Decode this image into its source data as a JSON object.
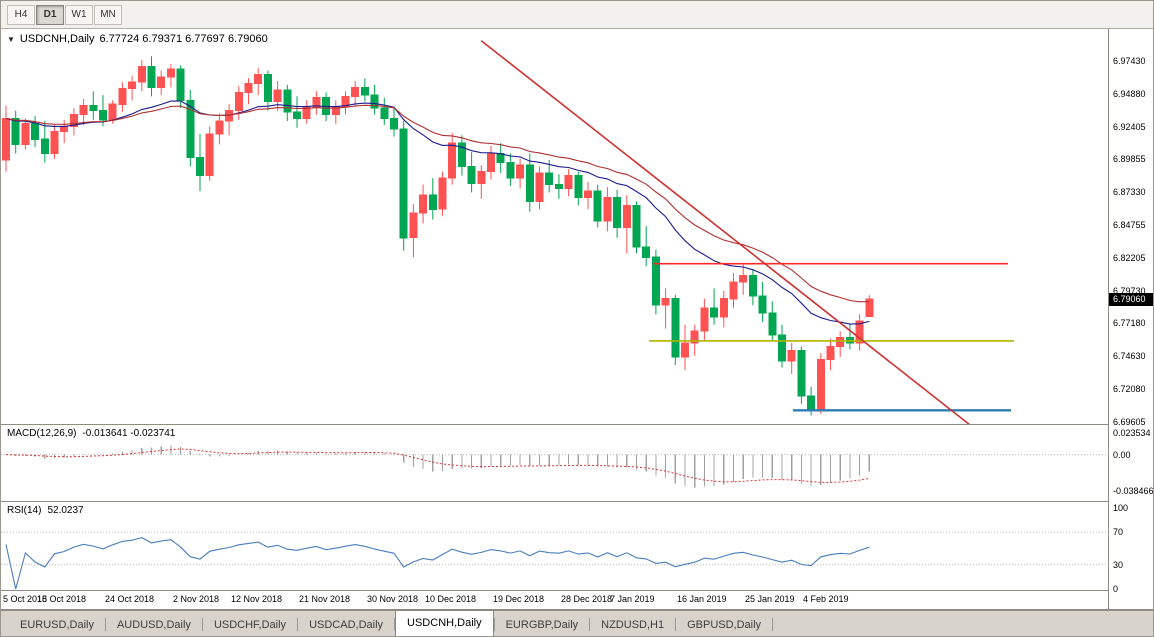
{
  "toolbar": {
    "timeframes": [
      {
        "label": "H4",
        "active": false
      },
      {
        "label": "D1",
        "active": true
      },
      {
        "label": "W1",
        "active": false
      },
      {
        "label": "MN",
        "active": false
      }
    ]
  },
  "chart": {
    "marker": "▼",
    "symbol_title": "USDCNH,Daily",
    "ohlc": "6.77724 6.79371 6.77697 6.79060"
  },
  "macd_panel": {
    "title": "MACD(12,26,9)",
    "values": "-0.013641 -0.023741",
    "axis_labels": [
      "0.023534",
      "0.00",
      "-0.038466"
    ]
  },
  "rsi_panel": {
    "title": "RSI(14)",
    "value": "52.0237",
    "axis_labels": [
      "100",
      "70",
      "30",
      "0"
    ]
  },
  "price_axis": {
    "labels": [
      "6.97430",
      "6.94880",
      "6.92405",
      "6.89855",
      "6.87330",
      "6.84755",
      "6.82205",
      "6.79730",
      "6.77180",
      "6.74630",
      "6.72080",
      "6.69605"
    ],
    "current_price": "6.79060"
  },
  "date_axis": {
    "ticks": [
      {
        "label": "5 Oct 2018",
        "bar": 0
      },
      {
        "label": "15 Oct 2018",
        "bar": 6
      },
      {
        "label": "24 Oct 2018",
        "bar": 13
      },
      {
        "label": "2 Nov 2018",
        "bar": 20
      },
      {
        "label": "12 Nov 2018",
        "bar": 26
      },
      {
        "label": "21 Nov 2018",
        "bar": 33
      },
      {
        "label": "30 Nov 2018",
        "bar": 40
      },
      {
        "label": "10 Dec 2018",
        "bar": 46
      },
      {
        "label": "19 Dec 2018",
        "bar": 53
      },
      {
        "label": "28 Dec 2018",
        "bar": 60
      },
      {
        "label": "7 Jan 2019",
        "bar": 65
      },
      {
        "label": "16 Jan 2019",
        "bar": 72
      },
      {
        "label": "25 Jan 2019",
        "bar": 79
      },
      {
        "label": "4 Feb 2019",
        "bar": 85
      }
    ]
  },
  "bottom_tabs": {
    "items": [
      {
        "label": "EURUSD,Daily",
        "active": false
      },
      {
        "label": "AUDUSD,Daily",
        "active": false
      },
      {
        "label": "USDCHF,Daily",
        "active": false
      },
      {
        "label": "USDCAD,Daily",
        "active": false
      },
      {
        "label": "USDCNH,Daily",
        "active": true
      },
      {
        "label": "EURGBP,Daily",
        "active": false
      },
      {
        "label": "NZDUSD,H1",
        "active": false
      },
      {
        "label": "GBPUSD,Daily",
        "active": false
      }
    ]
  },
  "colors": {
    "bull": "#ff5252",
    "bear": "#00a651",
    "ma_fast": "#1b1b8f",
    "ma_slow": "#b03030",
    "trendline": "#cc3333",
    "hline_red": "#ff2a2a",
    "hline_olive": "#b0b400",
    "hline_blue": "#2e7db2",
    "macd_hist": "#a0a0a0",
    "macd_signal": "#dd3333",
    "rsi": "#4a7ebb",
    "badge_bg": "#000000",
    "badge_text": "#ffffff"
  },
  "chart_data": {
    "type": "candlestick",
    "title": "USDCNH,Daily",
    "price_range": {
      "top": 6.999,
      "bottom": 6.6944
    },
    "candles": [
      [
        6.898,
        6.94,
        6.889,
        6.93
      ],
      [
        6.93,
        6.936,
        6.903,
        6.91
      ],
      [
        6.91,
        6.93,
        6.906,
        6.926
      ],
      [
        6.926,
        6.932,
        6.908,
        6.914
      ],
      [
        6.914,
        6.928,
        6.896,
        6.903
      ],
      [
        6.903,
        6.925,
        6.899,
        6.92
      ],
      [
        6.92,
        6.929,
        6.911,
        6.924
      ],
      [
        6.924,
        6.938,
        6.917,
        6.933
      ],
      [
        6.933,
        6.945,
        6.925,
        6.94
      ],
      [
        6.94,
        6.951,
        6.929,
        6.936
      ],
      [
        6.936,
        6.948,
        6.924,
        6.929
      ],
      [
        6.929,
        6.944,
        6.926,
        6.941
      ],
      [
        6.941,
        6.958,
        6.935,
        6.953
      ],
      [
        6.953,
        6.963,
        6.944,
        6.958
      ],
      [
        6.958,
        6.975,
        6.951,
        6.97
      ],
      [
        6.97,
        6.978,
        6.947,
        6.954
      ],
      [
        6.954,
        6.967,
        6.948,
        6.962
      ],
      [
        6.962,
        6.972,
        6.954,
        6.968
      ],
      [
        6.968,
        6.971,
        6.938,
        6.944
      ],
      [
        6.944,
        6.952,
        6.893,
        6.9
      ],
      [
        6.9,
        6.918,
        6.874,
        6.886
      ],
      [
        6.886,
        6.924,
        6.882,
        6.918
      ],
      [
        6.918,
        6.934,
        6.91,
        6.928
      ],
      [
        6.928,
        6.941,
        6.917,
        6.936
      ],
      [
        6.936,
        6.955,
        6.929,
        6.95
      ],
      [
        6.95,
        6.961,
        6.941,
        6.957
      ],
      [
        6.957,
        6.969,
        6.948,
        6.964
      ],
      [
        6.964,
        6.967,
        6.936,
        6.943
      ],
      [
        6.943,
        6.959,
        6.936,
        6.952
      ],
      [
        6.952,
        6.956,
        6.928,
        6.935
      ],
      [
        6.935,
        6.947,
        6.923,
        6.93
      ],
      [
        6.93,
        6.944,
        6.926,
        6.939
      ],
      [
        6.939,
        6.951,
        6.933,
        6.946
      ],
      [
        6.946,
        6.95,
        6.928,
        6.933
      ],
      [
        6.933,
        6.944,
        6.926,
        6.939
      ],
      [
        6.939,
        6.951,
        6.933,
        6.947
      ],
      [
        6.947,
        6.959,
        6.939,
        6.954
      ],
      [
        6.954,
        6.961,
        6.943,
        6.948
      ],
      [
        6.948,
        6.956,
        6.933,
        6.938
      ],
      [
        6.938,
        6.946,
        6.925,
        6.93
      ],
      [
        6.93,
        6.938,
        6.916,
        6.922
      ],
      [
        6.922,
        6.928,
        6.828,
        6.838
      ],
      [
        6.838,
        6.864,
        6.823,
        6.857
      ],
      [
        6.857,
        6.879,
        6.849,
        6.871
      ],
      [
        6.871,
        6.884,
        6.852,
        6.86
      ],
      [
        6.86,
        6.889,
        6.855,
        6.884
      ],
      [
        6.884,
        6.919,
        6.879,
        6.911
      ],
      [
        6.911,
        6.917,
        6.886,
        6.893
      ],
      [
        6.893,
        6.904,
        6.873,
        6.88
      ],
      [
        6.88,
        6.894,
        6.868,
        6.889
      ],
      [
        6.889,
        6.909,
        6.883,
        6.903
      ],
      [
        6.903,
        6.911,
        6.888,
        6.896
      ],
      [
        6.896,
        6.903,
        6.878,
        6.884
      ],
      [
        6.884,
        6.899,
        6.876,
        6.894
      ],
      [
        6.894,
        6.903,
        6.858,
        6.866
      ],
      [
        6.866,
        6.893,
        6.86,
        6.888
      ],
      [
        6.888,
        6.898,
        6.873,
        6.879
      ],
      [
        6.879,
        6.887,
        6.868,
        6.876
      ],
      [
        6.876,
        6.891,
        6.87,
        6.886
      ],
      [
        6.886,
        6.889,
        6.863,
        6.869
      ],
      [
        6.869,
        6.881,
        6.86,
        6.874
      ],
      [
        6.874,
        6.879,
        6.846,
        6.851
      ],
      [
        6.851,
        6.877,
        6.843,
        6.869
      ],
      [
        6.869,
        6.875,
        6.838,
        6.846
      ],
      [
        6.846,
        6.871,
        6.826,
        6.863
      ],
      [
        6.863,
        6.866,
        6.826,
        6.831
      ],
      [
        6.831,
        6.847,
        6.816,
        6.823
      ],
      [
        6.823,
        6.829,
        6.779,
        6.786
      ],
      [
        6.786,
        6.799,
        6.768,
        6.791
      ],
      [
        6.791,
        6.794,
        6.74,
        6.746
      ],
      [
        6.746,
        6.771,
        6.736,
        6.757
      ],
      [
        6.757,
        6.771,
        6.747,
        6.766
      ],
      [
        6.766,
        6.791,
        6.758,
        6.784
      ],
      [
        6.784,
        6.799,
        6.771,
        6.777
      ],
      [
        6.777,
        6.797,
        6.769,
        6.791
      ],
      [
        6.791,
        6.811,
        6.784,
        6.804
      ],
      [
        6.804,
        6.818,
        6.794,
        6.809
      ],
      [
        6.809,
        6.814,
        6.786,
        6.793
      ],
      [
        6.793,
        6.804,
        6.773,
        6.78
      ],
      [
        6.78,
        6.789,
        6.758,
        6.763
      ],
      [
        6.763,
        6.771,
        6.738,
        6.743
      ],
      [
        6.743,
        6.757,
        6.733,
        6.751
      ],
      [
        6.751,
        6.754,
        6.71,
        6.716
      ],
      [
        6.716,
        6.723,
        6.701,
        6.706
      ],
      [
        6.706,
        6.749,
        6.702,
        6.744
      ],
      [
        6.744,
        6.76,
        6.736,
        6.754
      ],
      [
        6.754,
        6.766,
        6.746,
        6.761
      ],
      [
        6.761,
        6.772,
        6.752,
        6.757
      ],
      [
        6.757,
        6.779,
        6.751,
        6.774
      ],
      [
        6.77724,
        6.79371,
        6.77697,
        6.7906
      ]
    ],
    "moving_averages": [
      {
        "name": "ma-fast",
        "period": 20,
        "color_key": "ma_fast"
      },
      {
        "name": "ma-slow",
        "period": 30,
        "color_key": "ma_slow"
      }
    ],
    "objects": {
      "trendline": {
        "from_bar": 49,
        "from_price": 6.99,
        "to_bar": 100,
        "to_price": 6.69
      },
      "hlines": [
        {
          "price": 6.818,
          "x0": 0.59,
          "x1": 0.91,
          "color_key": "hline_red",
          "width": 1.6
        },
        {
          "price": 6.7585,
          "x0": 0.585,
          "x1": 0.915,
          "color_key": "hline_olive",
          "width": 1.6
        },
        {
          "price": 6.705,
          "x0": 0.715,
          "x1": 0.912,
          "color_key": "hline_blue",
          "width": 2.4
        }
      ]
    },
    "macd": {
      "fast": 12,
      "slow": 26,
      "signal": 9,
      "scale_top": 0.0315,
      "scale_bottom": -0.0494
    },
    "rsi": {
      "period": 14,
      "levels": [
        70,
        30
      ],
      "scale": [
        0,
        100
      ]
    }
  }
}
